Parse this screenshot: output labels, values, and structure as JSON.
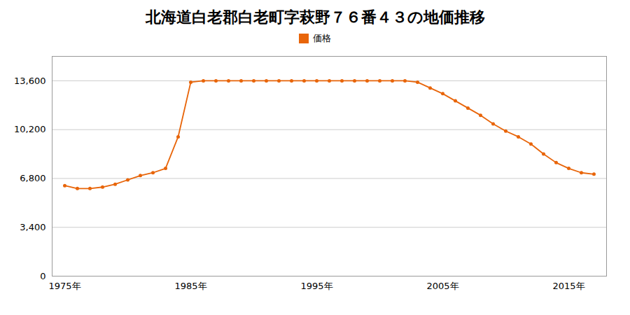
{
  "chart_data": {
    "type": "line",
    "title": "北海道白老郡白老町字萩野７６番４３の地価推移",
    "x": [
      1975,
      1976,
      1977,
      1978,
      1979,
      1980,
      1981,
      1982,
      1983,
      1984,
      1985,
      1986,
      1987,
      1988,
      1989,
      1990,
      1991,
      1992,
      1993,
      1994,
      1995,
      1996,
      1997,
      1998,
      1999,
      2000,
      2001,
      2002,
      2003,
      2004,
      2005,
      2006,
      2007,
      2008,
      2009,
      2010,
      2011,
      2012,
      2013,
      2014,
      2015,
      2016,
      2017
    ],
    "series": [
      {
        "name": "価格",
        "color": "#E8650A",
        "marker": "circle",
        "values": [
          6300,
          6100,
          6100,
          6200,
          6400,
          6700,
          7000,
          7200,
          7500,
          9700,
          13500,
          13600,
          13600,
          13600,
          13600,
          13600,
          13600,
          13600,
          13600,
          13600,
          13600,
          13600,
          13600,
          13600,
          13600,
          13600,
          13600,
          13600,
          13500,
          13100,
          12700,
          12200,
          11700,
          11200,
          10600,
          10100,
          9700,
          9200,
          8500,
          7900,
          7500,
          7200,
          7100
        ]
      }
    ],
    "xlim": [
      1974,
      2018
    ],
    "xticks": [
      {
        "value": 1975,
        "label": "1975年"
      },
      {
        "value": 1985,
        "label": "1985年"
      },
      {
        "value": 1995,
        "label": "1995年"
      },
      {
        "value": 2005,
        "label": "2005年"
      },
      {
        "value": 2015,
        "label": "2015年"
      }
    ],
    "ylim": [
      0,
      15300
    ],
    "yticks": [
      0,
      {
        "value": 3400,
        "label": "3,400"
      },
      {
        "value": 6800,
        "label": "6,800"
      },
      {
        "value": 10200,
        "label": "10,200"
      },
      {
        "value": 13600,
        "label": "13,600"
      }
    ],
    "grid": true,
    "legend": "top"
  }
}
